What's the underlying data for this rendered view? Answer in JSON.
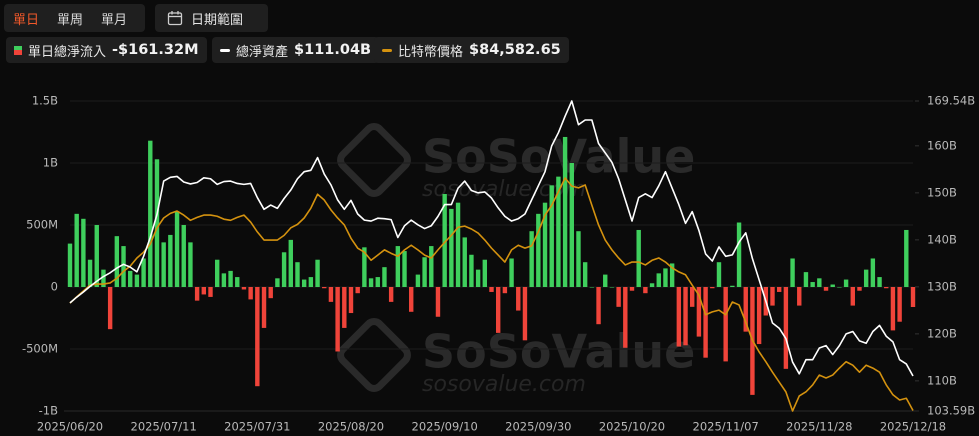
{
  "toolbar": {
    "periods": [
      "單日",
      "單周",
      "單月"
    ],
    "date_range": "日期範圍"
  },
  "chart_data": {
    "type": "combo",
    "watermark": [
      "SoSoValue",
      "sosovalue.com"
    ],
    "categories": [
      "2025/06/20",
      null,
      null,
      null,
      null,
      null,
      null,
      null,
      null,
      null,
      null,
      null,
      null,
      null,
      "2025/07/11",
      null,
      null,
      null,
      null,
      null,
      null,
      null,
      null,
      null,
      null,
      null,
      null,
      null,
      "2025/07/31",
      null,
      null,
      null,
      null,
      null,
      null,
      null,
      null,
      null,
      null,
      null,
      null,
      null,
      "2025/08/20",
      null,
      null,
      null,
      null,
      null,
      null,
      null,
      null,
      null,
      null,
      null,
      null,
      null,
      "2025/09/10",
      null,
      null,
      null,
      null,
      null,
      null,
      null,
      null,
      null,
      null,
      null,
      null,
      null,
      "2025/09/30",
      null,
      null,
      null,
      null,
      null,
      null,
      null,
      null,
      null,
      null,
      null,
      null,
      null,
      "2025/10/20",
      null,
      null,
      null,
      null,
      null,
      null,
      null,
      null,
      null,
      null,
      null,
      null,
      null,
      "2025/11/07",
      null,
      null,
      null,
      null,
      null,
      null,
      null,
      null,
      null,
      null,
      null,
      null,
      null,
      "2025/11/28",
      null,
      null,
      null,
      null,
      null,
      null,
      null,
      null,
      null,
      null,
      null,
      null,
      null,
      "2025/12/18"
    ],
    "ylim": [
      -1000,
      1500
    ],
    "yticks": [
      {
        "value": -1000,
        "label": "-1B"
      },
      {
        "value": -500,
        "label": "-500M"
      },
      0,
      {
        "value": 500,
        "label": "500M"
      },
      {
        "value": 1000,
        "label": "1B"
      },
      {
        "value": 1500,
        "label": "1.5B"
      }
    ],
    "y2lim": [
      103.59,
      169.54
    ],
    "y2ticks": [
      {
        "value": 103.59,
        "label": "103.59B"
      },
      {
        "value": 110,
        "label": "110B"
      },
      {
        "value": 120,
        "label": "120B"
      },
      {
        "value": 130,
        "label": "130B"
      },
      {
        "value": 140,
        "label": "140B"
      },
      {
        "value": 150,
        "label": "150B"
      },
      {
        "value": 160,
        "label": "160B"
      },
      {
        "value": 169.54,
        "label": "169.54B"
      }
    ],
    "grid": true,
    "series": [
      {
        "name": "單日總淨流入",
        "legend_value": "-$161.32M",
        "type": "bar",
        "color": "#3fcf5d",
        "negative_color": "#f0443a",
        "values": [
          350,
          590,
          550,
          220,
          500,
          140,
          -340,
          410,
          330,
          130,
          100,
          230,
          1180,
          1030,
          360,
          420,
          610,
          500,
          360,
          -110,
          -60,
          -80,
          220,
          110,
          130,
          80,
          -20,
          -100,
          -800,
          -330,
          -90,
          70,
          280,
          380,
          200,
          60,
          80,
          220,
          -10,
          -120,
          -520,
          -330,
          -210,
          -50,
          320,
          70,
          80,
          160,
          -120,
          330,
          290,
          -200,
          100,
          240,
          330,
          -240,
          750,
          630,
          680,
          400,
          260,
          140,
          220,
          -40,
          -370,
          -50,
          230,
          -190,
          -430,
          450,
          590,
          680,
          820,
          890,
          1210,
          1000,
          450,
          200,
          0,
          -300,
          100,
          0,
          -160,
          -490,
          -30,
          460,
          -50,
          30,
          110,
          150,
          190,
          -480,
          -470,
          -160,
          -400,
          -570,
          -10,
          200,
          -600,
          10,
          520,
          -360,
          -870,
          -460,
          -230,
          -150,
          -40,
          -660,
          230,
          -150,
          120,
          40,
          70,
          -30,
          20,
          0,
          60,
          -150,
          -30,
          140,
          230,
          80,
          -10,
          -350,
          -280,
          460,
          -161.32
        ]
      },
      {
        "name": "總淨資產",
        "legend_value": "$111.04B",
        "type": "line",
        "axis": "y2",
        "color": "#ffffff",
        "values": [
          126.6,
          127.8,
          128.9,
          130.1,
          131.2,
          132.2,
          133.0,
          134.0,
          134.8,
          134.2,
          133.2,
          136.5,
          140.5,
          145.4,
          152.5,
          153.3,
          153.5,
          152.3,
          151.9,
          152.2,
          153.2,
          153.0,
          151.8,
          152.4,
          152.5,
          152.0,
          151.8,
          152.0,
          149.0,
          146.5,
          147.4,
          146.7,
          148.8,
          150.6,
          153.0,
          154.5,
          154.8,
          157.5,
          154.0,
          151.7,
          148.5,
          146.5,
          148.4,
          145.5,
          144.2,
          144.0,
          144.6,
          144.5,
          144.3,
          140.5,
          143.0,
          144.2,
          143.2,
          142.4,
          143.0,
          145.0,
          147.5,
          147.5,
          151.0,
          152.5,
          150.5,
          150.0,
          150.2,
          148.9,
          146.8,
          145.0,
          144.0,
          144.5,
          145.5,
          148.5,
          151.5,
          154.5,
          160.0,
          162.8,
          166.3,
          169.54,
          164.5,
          165.5,
          165.5,
          160.5,
          158.5,
          156.5,
          153.0,
          148.5,
          144.0,
          149.0,
          149.8,
          149.0,
          151.5,
          154.5,
          151.0,
          147.5,
          143.5,
          146.0,
          142.0,
          137.0,
          135.5,
          138.5,
          136.5,
          136.8,
          139.5,
          141.5,
          136.0,
          131.5,
          127.0,
          122.3,
          121.2,
          119.0,
          114.0,
          111.5,
          114.5,
          114.5,
          117.0,
          117.5,
          115.6,
          117.5,
          120.0,
          120.5,
          118.5,
          118.0,
          120.5,
          121.8,
          119.5,
          118.3,
          114.5,
          113.6,
          111.04
        ]
      },
      {
        "name": "比特幣價格",
        "legend_value": "$84,582.65",
        "type": "line",
        "color": "#d4920f",
        "values": [
          103100,
          104200,
          105200,
          106200,
          106400,
          106400,
          106600,
          107400,
          108600,
          109500,
          110900,
          111900,
          113300,
          116100,
          117800,
          118600,
          119000,
          118300,
          117400,
          117900,
          118300,
          118300,
          118100,
          117600,
          117400,
          117900,
          118300,
          117100,
          115400,
          114000,
          114000,
          114000,
          114800,
          116100,
          116700,
          117800,
          119500,
          121900,
          120900,
          119200,
          117800,
          116600,
          114300,
          112600,
          111900,
          110500,
          111400,
          112300,
          111700,
          111200,
          112300,
          113100,
          112300,
          111400,
          110900,
          112300,
          113600,
          114800,
          116200,
          116400,
          115900,
          115200,
          114000,
          112600,
          111400,
          110200,
          112300,
          113100,
          112600,
          113000,
          115400,
          118300,
          120000,
          122300,
          124700,
          123300,
          123000,
          123500,
          120000,
          116600,
          114000,
          112300,
          110900,
          109700,
          110200,
          110200,
          109700,
          110500,
          110900,
          110200,
          109200,
          108500,
          108000,
          106200,
          104500,
          101100,
          101600,
          101900,
          101100,
          103300,
          102800,
          99800,
          96700,
          94700,
          93000,
          91200,
          89500,
          87800,
          84500,
          87100,
          87800,
          89000,
          90700,
          90200,
          90700,
          91900,
          93000,
          92400,
          91200,
          92400,
          91900,
          91200,
          89000,
          87300,
          86400,
          86700,
          84582.65
        ]
      }
    ]
  }
}
